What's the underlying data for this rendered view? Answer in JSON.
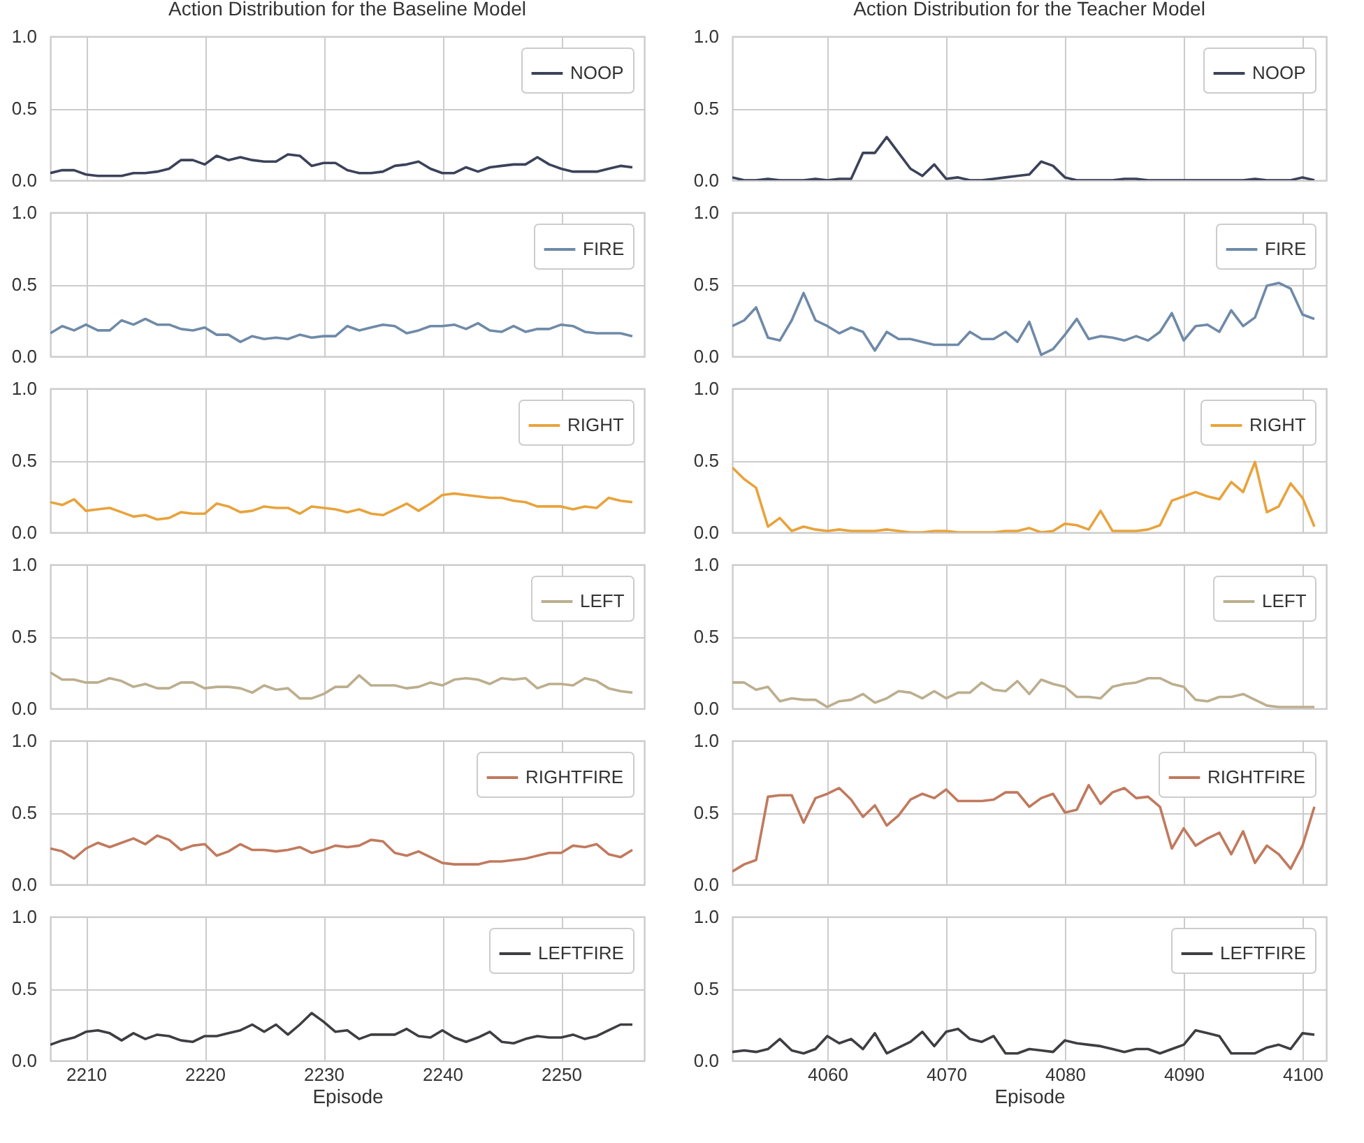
{
  "chart_data": [
    {
      "type": "line",
      "title": "Action Distribution for the Baseline Model",
      "x": [
        2207,
        2208,
        2209,
        2210,
        2211,
        2212,
        2213,
        2214,
        2215,
        2216,
        2217,
        2218,
        2219,
        2220,
        2221,
        2222,
        2223,
        2224,
        2225,
        2226,
        2227,
        2228,
        2229,
        2230,
        2231,
        2232,
        2233,
        2234,
        2235,
        2236,
        2237,
        2238,
        2239,
        2240,
        2241,
        2242,
        2243,
        2244,
        2245,
        2246,
        2247,
        2248,
        2249,
        2250,
        2251,
        2252,
        2253,
        2254,
        2255,
        2256
      ],
      "xlim": [
        2207,
        2257
      ],
      "xticks": [
        2210,
        2220,
        2230,
        2240,
        2250
      ],
      "ylim": [
        0,
        1
      ],
      "yticks": [
        {
          "value": 0,
          "label": "0.0"
        },
        {
          "value": 0.5,
          "label": "0.5"
        },
        {
          "value": 1,
          "label": "1.0"
        }
      ],
      "grid": true,
      "legend": "top right",
      "tick_labels": "y",
      "series": [
        {
          "name": "NOOP",
          "color": "#3b4259",
          "values": [
            0.05,
            0.07,
            0.07,
            0.04,
            0.03,
            0.03,
            0.03,
            0.05,
            0.05,
            0.06,
            0.08,
            0.14,
            0.14,
            0.11,
            0.17,
            0.14,
            0.16,
            0.14,
            0.13,
            0.13,
            0.18,
            0.17,
            0.1,
            0.12,
            0.12,
            0.07,
            0.05,
            0.05,
            0.06,
            0.1,
            0.11,
            0.13,
            0.08,
            0.05,
            0.05,
            0.09,
            0.06,
            0.09,
            0.1,
            0.11,
            0.11,
            0.16,
            0.11,
            0.08,
            0.06,
            0.06,
            0.06,
            0.08,
            0.1,
            0.09
          ]
        }
      ]
    },
    {
      "type": "line",
      "title": "Action Distribution for the Teacher Model",
      "x": [
        4052,
        4053,
        4054,
        4055,
        4056,
        4057,
        4058,
        4059,
        4060,
        4061,
        4062,
        4063,
        4064,
        4065,
        4066,
        4067,
        4068,
        4069,
        4070,
        4071,
        4072,
        4073,
        4074,
        4075,
        4076,
        4077,
        4078,
        4079,
        4080,
        4081,
        4082,
        4083,
        4084,
        4085,
        4086,
        4087,
        4088,
        4089,
        4090,
        4091,
        4092,
        4093,
        4094,
        4095,
        4096,
        4097,
        4098,
        4099,
        4100,
        4101
      ],
      "xlim": [
        4052,
        4102
      ],
      "xticks": [
        4060,
        4070,
        4080,
        4090,
        4100
      ],
      "ylim": [
        0,
        1
      ],
      "yticks": [
        {
          "value": 0,
          "label": "0.0"
        },
        {
          "value": 0.5,
          "label": "0.5"
        },
        {
          "value": 1,
          "label": "1.0"
        }
      ],
      "grid": true,
      "legend": "top right",
      "tick_labels": "y",
      "series": [
        {
          "name": "NOOP",
          "color": "#3b4259",
          "values": [
            0.02,
            0.0,
            0.0,
            0.01,
            0.0,
            0.0,
            0.0,
            0.01,
            0.0,
            0.01,
            0.01,
            0.19,
            0.19,
            0.3,
            0.19,
            0.08,
            0.03,
            0.11,
            0.01,
            0.02,
            0.0,
            0.0,
            0.01,
            0.02,
            0.03,
            0.04,
            0.13,
            0.1,
            0.02,
            0.0,
            0.0,
            0.0,
            0.0,
            0.01,
            0.01,
            0.0,
            0.0,
            0.0,
            0.0,
            0.0,
            0.0,
            0.0,
            0.0,
            0.0,
            0.01,
            0.0,
            0.0,
            0.0,
            0.02,
            0.0
          ]
        }
      ]
    },
    {
      "type": "line",
      "x": [
        2207,
        2208,
        2209,
        2210,
        2211,
        2212,
        2213,
        2214,
        2215,
        2216,
        2217,
        2218,
        2219,
        2220,
        2221,
        2222,
        2223,
        2224,
        2225,
        2226,
        2227,
        2228,
        2229,
        2230,
        2231,
        2232,
        2233,
        2234,
        2235,
        2236,
        2237,
        2238,
        2239,
        2240,
        2241,
        2242,
        2243,
        2244,
        2245,
        2246,
        2247,
        2248,
        2249,
        2250,
        2251,
        2252,
        2253,
        2254,
        2255,
        2256
      ],
      "xlim": [
        2207,
        2257
      ],
      "xticks": [
        2210,
        2220,
        2230,
        2240,
        2250
      ],
      "ylim": [
        0,
        1
      ],
      "yticks": [
        {
          "value": 0,
          "label": "0.0"
        },
        {
          "value": 0.5,
          "label": "0.5"
        },
        {
          "value": 1,
          "label": "1.0"
        }
      ],
      "grid": true,
      "legend": "top right",
      "tick_labels": "y",
      "series": [
        {
          "name": "FIRE",
          "color": "#6f8aa8",
          "values": [
            0.16,
            0.21,
            0.18,
            0.22,
            0.18,
            0.18,
            0.25,
            0.22,
            0.26,
            0.22,
            0.22,
            0.19,
            0.18,
            0.2,
            0.15,
            0.15,
            0.1,
            0.14,
            0.12,
            0.13,
            0.12,
            0.15,
            0.13,
            0.14,
            0.14,
            0.21,
            0.18,
            0.2,
            0.22,
            0.21,
            0.16,
            0.18,
            0.21,
            0.21,
            0.22,
            0.19,
            0.23,
            0.18,
            0.17,
            0.21,
            0.17,
            0.19,
            0.19,
            0.22,
            0.21,
            0.17,
            0.16,
            0.16,
            0.16,
            0.14
          ]
        }
      ]
    },
    {
      "type": "line",
      "x": [
        4052,
        4053,
        4054,
        4055,
        4056,
        4057,
        4058,
        4059,
        4060,
        4061,
        4062,
        4063,
        4064,
        4065,
        4066,
        4067,
        4068,
        4069,
        4070,
        4071,
        4072,
        4073,
        4074,
        4075,
        4076,
        4077,
        4078,
        4079,
        4080,
        4081,
        4082,
        4083,
        4084,
        4085,
        4086,
        4087,
        4088,
        4089,
        4090,
        4091,
        4092,
        4093,
        4094,
        4095,
        4096,
        4097,
        4098,
        4099,
        4100,
        4101
      ],
      "xlim": [
        4052,
        4102
      ],
      "xticks": [
        4060,
        4070,
        4080,
        4090,
        4100
      ],
      "ylim": [
        0,
        1
      ],
      "yticks": [
        {
          "value": 0,
          "label": "0.0"
        },
        {
          "value": 0.5,
          "label": "0.5"
        },
        {
          "value": 1,
          "label": "1.0"
        }
      ],
      "grid": true,
      "legend": "top right",
      "tick_labels": "y",
      "series": [
        {
          "name": "FIRE",
          "color": "#6f8aa8",
          "values": [
            0.21,
            0.25,
            0.34,
            0.13,
            0.11,
            0.25,
            0.44,
            0.25,
            0.21,
            0.16,
            0.2,
            0.17,
            0.04,
            0.17,
            0.12,
            0.12,
            0.1,
            0.08,
            0.08,
            0.08,
            0.17,
            0.12,
            0.12,
            0.17,
            0.1,
            0.24,
            0.01,
            0.05,
            0.15,
            0.26,
            0.12,
            0.14,
            0.13,
            0.11,
            0.14,
            0.11,
            0.17,
            0.3,
            0.11,
            0.21,
            0.22,
            0.17,
            0.32,
            0.21,
            0.27,
            0.49,
            0.51,
            0.47,
            0.29,
            0.26
          ]
        }
      ]
    },
    {
      "type": "line",
      "x": [
        2207,
        2208,
        2209,
        2210,
        2211,
        2212,
        2213,
        2214,
        2215,
        2216,
        2217,
        2218,
        2219,
        2220,
        2221,
        2222,
        2223,
        2224,
        2225,
        2226,
        2227,
        2228,
        2229,
        2230,
        2231,
        2232,
        2233,
        2234,
        2235,
        2236,
        2237,
        2238,
        2239,
        2240,
        2241,
        2242,
        2243,
        2244,
        2245,
        2246,
        2247,
        2248,
        2249,
        2250,
        2251,
        2252,
        2253,
        2254,
        2255,
        2256
      ],
      "xlim": [
        2207,
        2257
      ],
      "xticks": [
        2210,
        2220,
        2230,
        2240,
        2250
      ],
      "ylim": [
        0,
        1
      ],
      "yticks": [
        {
          "value": 0,
          "label": "0.0"
        },
        {
          "value": 0.5,
          "label": "0.5"
        },
        {
          "value": 1,
          "label": "1.0"
        }
      ],
      "grid": true,
      "legend": "top right",
      "tick_labels": "y",
      "series": [
        {
          "name": "RIGHT",
          "color": "#e8a33c",
          "values": [
            0.21,
            0.19,
            0.23,
            0.15,
            0.16,
            0.17,
            0.14,
            0.11,
            0.12,
            0.09,
            0.1,
            0.14,
            0.13,
            0.13,
            0.2,
            0.18,
            0.14,
            0.15,
            0.18,
            0.17,
            0.17,
            0.13,
            0.18,
            0.17,
            0.16,
            0.14,
            0.16,
            0.13,
            0.12,
            0.16,
            0.2,
            0.15,
            0.2,
            0.26,
            0.27,
            0.26,
            0.25,
            0.24,
            0.24,
            0.22,
            0.21,
            0.18,
            0.18,
            0.18,
            0.16,
            0.18,
            0.17,
            0.24,
            0.22,
            0.21
          ]
        }
      ]
    },
    {
      "type": "line",
      "x": [
        4052,
        4053,
        4054,
        4055,
        4056,
        4057,
        4058,
        4059,
        4060,
        4061,
        4062,
        4063,
        4064,
        4065,
        4066,
        4067,
        4068,
        4069,
        4070,
        4071,
        4072,
        4073,
        4074,
        4075,
        4076,
        4077,
        4078,
        4079,
        4080,
        4081,
        4082,
        4083,
        4084,
        4085,
        4086,
        4087,
        4088,
        4089,
        4090,
        4091,
        4092,
        4093,
        4094,
        4095,
        4096,
        4097,
        4098,
        4099,
        4100,
        4101
      ],
      "xlim": [
        4052,
        4102
      ],
      "xticks": [
        4060,
        4070,
        4080,
        4090,
        4100
      ],
      "ylim": [
        0,
        1
      ],
      "yticks": [
        {
          "value": 0,
          "label": "0.0"
        },
        {
          "value": 0.5,
          "label": "0.5"
        },
        {
          "value": 1,
          "label": "1.0"
        }
      ],
      "grid": true,
      "legend": "top right",
      "tick_labels": "y",
      "series": [
        {
          "name": "RIGHT",
          "color": "#e8a33c",
          "values": [
            0.45,
            0.37,
            0.31,
            0.04,
            0.1,
            0.01,
            0.04,
            0.02,
            0.01,
            0.02,
            0.01,
            0.01,
            0.01,
            0.02,
            0.01,
            0.0,
            0.0,
            0.01,
            0.01,
            0.0,
            0.0,
            0.0,
            0.0,
            0.01,
            0.01,
            0.03,
            0.0,
            0.01,
            0.06,
            0.05,
            0.02,
            0.15,
            0.01,
            0.01,
            0.01,
            0.02,
            0.05,
            0.22,
            0.25,
            0.28,
            0.25,
            0.23,
            0.35,
            0.28,
            0.49,
            0.14,
            0.18,
            0.34,
            0.24,
            0.04
          ]
        }
      ]
    },
    {
      "type": "line",
      "x": [
        2207,
        2208,
        2209,
        2210,
        2211,
        2212,
        2213,
        2214,
        2215,
        2216,
        2217,
        2218,
        2219,
        2220,
        2221,
        2222,
        2223,
        2224,
        2225,
        2226,
        2227,
        2228,
        2229,
        2230,
        2231,
        2232,
        2233,
        2234,
        2235,
        2236,
        2237,
        2238,
        2239,
        2240,
        2241,
        2242,
        2243,
        2244,
        2245,
        2246,
        2247,
        2248,
        2249,
        2250,
        2251,
        2252,
        2253,
        2254,
        2255,
        2256
      ],
      "xlim": [
        2207,
        2257
      ],
      "xticks": [
        2210,
        2220,
        2230,
        2240,
        2250
      ],
      "ylim": [
        0,
        1
      ],
      "yticks": [
        {
          "value": 0,
          "label": "0.0"
        },
        {
          "value": 0.5,
          "label": "0.5"
        },
        {
          "value": 1,
          "label": "1.0"
        }
      ],
      "grid": true,
      "legend": "top right",
      "tick_labels": "y",
      "series": [
        {
          "name": "LEFT",
          "color": "#bcae8e",
          "values": [
            0.25,
            0.2,
            0.2,
            0.18,
            0.18,
            0.21,
            0.19,
            0.15,
            0.17,
            0.14,
            0.14,
            0.18,
            0.18,
            0.14,
            0.15,
            0.15,
            0.14,
            0.11,
            0.16,
            0.13,
            0.14,
            0.07,
            0.07,
            0.1,
            0.15,
            0.15,
            0.23,
            0.16,
            0.16,
            0.16,
            0.14,
            0.15,
            0.18,
            0.16,
            0.2,
            0.21,
            0.2,
            0.17,
            0.21,
            0.2,
            0.21,
            0.14,
            0.17,
            0.17,
            0.16,
            0.21,
            0.19,
            0.14,
            0.12,
            0.11
          ]
        }
      ]
    },
    {
      "type": "line",
      "x": [
        4052,
        4053,
        4054,
        4055,
        4056,
        4057,
        4058,
        4059,
        4060,
        4061,
        4062,
        4063,
        4064,
        4065,
        4066,
        4067,
        4068,
        4069,
        4070,
        4071,
        4072,
        4073,
        4074,
        4075,
        4076,
        4077,
        4078,
        4079,
        4080,
        4081,
        4082,
        4083,
        4084,
        4085,
        4086,
        4087,
        4088,
        4089,
        4090,
        4091,
        4092,
        4093,
        4094,
        4095,
        4096,
        4097,
        4098,
        4099,
        4100,
        4101
      ],
      "xlim": [
        4052,
        4102
      ],
      "xticks": [
        4060,
        4070,
        4080,
        4090,
        4100
      ],
      "ylim": [
        0,
        1
      ],
      "yticks": [
        {
          "value": 0,
          "label": "0.0"
        },
        {
          "value": 0.5,
          "label": "0.5"
        },
        {
          "value": 1,
          "label": "1.0"
        }
      ],
      "grid": true,
      "legend": "top right",
      "tick_labels": "y",
      "series": [
        {
          "name": "LEFT",
          "color": "#bcae8e",
          "values": [
            0.18,
            0.18,
            0.13,
            0.15,
            0.05,
            0.07,
            0.06,
            0.06,
            0.01,
            0.05,
            0.06,
            0.1,
            0.04,
            0.07,
            0.12,
            0.11,
            0.07,
            0.12,
            0.07,
            0.11,
            0.11,
            0.18,
            0.13,
            0.12,
            0.19,
            0.1,
            0.2,
            0.17,
            0.15,
            0.08,
            0.08,
            0.07,
            0.15,
            0.17,
            0.18,
            0.21,
            0.21,
            0.17,
            0.15,
            0.06,
            0.05,
            0.08,
            0.08,
            0.1,
            0.06,
            0.02,
            0.01,
            0.01,
            0.01,
            0.01
          ]
        }
      ]
    },
    {
      "type": "line",
      "x": [
        2207,
        2208,
        2209,
        2210,
        2211,
        2212,
        2213,
        2214,
        2215,
        2216,
        2217,
        2218,
        2219,
        2220,
        2221,
        2222,
        2223,
        2224,
        2225,
        2226,
        2227,
        2228,
        2229,
        2230,
        2231,
        2232,
        2233,
        2234,
        2235,
        2236,
        2237,
        2238,
        2239,
        2240,
        2241,
        2242,
        2243,
        2244,
        2245,
        2246,
        2247,
        2248,
        2249,
        2250,
        2251,
        2252,
        2253,
        2254,
        2255,
        2256
      ],
      "xlim": [
        2207,
        2257
      ],
      "xticks": [
        2210,
        2220,
        2230,
        2240,
        2250
      ],
      "ylim": [
        0,
        1
      ],
      "yticks": [
        {
          "value": 0,
          "label": "0.0"
        },
        {
          "value": 0.5,
          "label": "0.5"
        },
        {
          "value": 1,
          "label": "1.0"
        }
      ],
      "grid": true,
      "legend": "top right",
      "tick_labels": "y",
      "series": [
        {
          "name": "RIGHTFIRE",
          "color": "#c07a5e",
          "values": [
            0.25,
            0.23,
            0.18,
            0.25,
            0.29,
            0.26,
            0.29,
            0.32,
            0.28,
            0.34,
            0.31,
            0.24,
            0.27,
            0.28,
            0.2,
            0.23,
            0.28,
            0.24,
            0.24,
            0.23,
            0.24,
            0.26,
            0.22,
            0.24,
            0.27,
            0.26,
            0.27,
            0.31,
            0.3,
            0.22,
            0.2,
            0.23,
            0.19,
            0.15,
            0.14,
            0.14,
            0.14,
            0.16,
            0.16,
            0.17,
            0.18,
            0.2,
            0.22,
            0.22,
            0.27,
            0.26,
            0.28,
            0.21,
            0.19,
            0.24
          ]
        }
      ]
    },
    {
      "type": "line",
      "x": [
        4052,
        4053,
        4054,
        4055,
        4056,
        4057,
        4058,
        4059,
        4060,
        4061,
        4062,
        4063,
        4064,
        4065,
        4066,
        4067,
        4068,
        4069,
        4070,
        4071,
        4072,
        4073,
        4074,
        4075,
        4076,
        4077,
        4078,
        4079,
        4080,
        4081,
        4082,
        4083,
        4084,
        4085,
        4086,
        4087,
        4088,
        4089,
        4090,
        4091,
        4092,
        4093,
        4094,
        4095,
        4096,
        4097,
        4098,
        4099,
        4100,
        4101
      ],
      "xlim": [
        4052,
        4102
      ],
      "xticks": [
        4060,
        4070,
        4080,
        4090,
        4100
      ],
      "ylim": [
        0,
        1
      ],
      "yticks": [
        {
          "value": 0,
          "label": "0.0"
        },
        {
          "value": 0.5,
          "label": "0.5"
        },
        {
          "value": 1,
          "label": "1.0"
        }
      ],
      "grid": true,
      "legend": "top right",
      "tick_labels": "y",
      "series": [
        {
          "name": "RIGHTFIRE",
          "color": "#c07a5e",
          "values": [
            0.09,
            0.14,
            0.17,
            0.61,
            0.62,
            0.62,
            0.43,
            0.6,
            0.63,
            0.67,
            0.59,
            0.47,
            0.55,
            0.41,
            0.48,
            0.59,
            0.63,
            0.6,
            0.66,
            0.58,
            0.58,
            0.58,
            0.59,
            0.64,
            0.64,
            0.54,
            0.6,
            0.63,
            0.5,
            0.52,
            0.69,
            0.56,
            0.64,
            0.67,
            0.6,
            0.61,
            0.54,
            0.25,
            0.39,
            0.27,
            0.32,
            0.36,
            0.21,
            0.37,
            0.15,
            0.27,
            0.21,
            0.11,
            0.27,
            0.54
          ]
        }
      ]
    },
    {
      "type": "line",
      "xlabel": "Episode",
      "x": [
        2207,
        2208,
        2209,
        2210,
        2211,
        2212,
        2213,
        2214,
        2215,
        2216,
        2217,
        2218,
        2219,
        2220,
        2221,
        2222,
        2223,
        2224,
        2225,
        2226,
        2227,
        2228,
        2229,
        2230,
        2231,
        2232,
        2233,
        2234,
        2235,
        2236,
        2237,
        2238,
        2239,
        2240,
        2241,
        2242,
        2243,
        2244,
        2245,
        2246,
        2247,
        2248,
        2249,
        2250,
        2251,
        2252,
        2253,
        2254,
        2255,
        2256
      ],
      "xlim": [
        2207,
        2257
      ],
      "xticks": [
        2210,
        2220,
        2230,
        2240,
        2250
      ],
      "ylim": [
        0,
        1
      ],
      "yticks": [
        {
          "value": 0,
          "label": "0.0"
        },
        {
          "value": 0.5,
          "label": "0.5"
        },
        {
          "value": 1,
          "label": "1.0"
        }
      ],
      "grid": true,
      "legend": "top right",
      "series": [
        {
          "name": "LEFTFIRE",
          "color": "#3e3e42",
          "values": [
            0.11,
            0.14,
            0.16,
            0.2,
            0.21,
            0.19,
            0.14,
            0.19,
            0.15,
            0.18,
            0.17,
            0.14,
            0.13,
            0.17,
            0.17,
            0.19,
            0.21,
            0.25,
            0.2,
            0.25,
            0.18,
            0.25,
            0.33,
            0.27,
            0.2,
            0.21,
            0.15,
            0.18,
            0.18,
            0.18,
            0.22,
            0.17,
            0.16,
            0.21,
            0.16,
            0.13,
            0.16,
            0.2,
            0.13,
            0.12,
            0.15,
            0.17,
            0.16,
            0.16,
            0.18,
            0.15,
            0.17,
            0.21,
            0.25,
            0.25
          ]
        }
      ]
    },
    {
      "type": "line",
      "xlabel": "Episode",
      "x": [
        4052,
        4053,
        4054,
        4055,
        4056,
        4057,
        4058,
        4059,
        4060,
        4061,
        4062,
        4063,
        4064,
        4065,
        4066,
        4067,
        4068,
        4069,
        4070,
        4071,
        4072,
        4073,
        4074,
        4075,
        4076,
        4077,
        4078,
        4079,
        4080,
        4081,
        4082,
        4083,
        4084,
        4085,
        4086,
        4087,
        4088,
        4089,
        4090,
        4091,
        4092,
        4093,
        4094,
        4095,
        4096,
        4097,
        4098,
        4099,
        4100,
        4101
      ],
      "xlim": [
        4052,
        4102
      ],
      "xticks": [
        4060,
        4070,
        4080,
        4090,
        4100
      ],
      "ylim": [
        0,
        1
      ],
      "yticks": [
        {
          "value": 0,
          "label": "0.0"
        },
        {
          "value": 0.5,
          "label": "0.5"
        },
        {
          "value": 1,
          "label": "1.0"
        }
      ],
      "grid": true,
      "legend": "top right",
      "series": [
        {
          "name": "LEFTFIRE",
          "color": "#3e3e42",
          "values": [
            0.06,
            0.07,
            0.06,
            0.08,
            0.15,
            0.07,
            0.05,
            0.08,
            0.17,
            0.12,
            0.15,
            0.08,
            0.19,
            0.05,
            0.09,
            0.13,
            0.2,
            0.1,
            0.2,
            0.22,
            0.15,
            0.13,
            0.17,
            0.05,
            0.05,
            0.08,
            0.07,
            0.06,
            0.14,
            0.12,
            0.11,
            0.1,
            0.08,
            0.06,
            0.08,
            0.08,
            0.05,
            0.08,
            0.11,
            0.21,
            0.19,
            0.17,
            0.05,
            0.05,
            0.05,
            0.09,
            0.11,
            0.08,
            0.19,
            0.18
          ]
        }
      ]
    }
  ]
}
